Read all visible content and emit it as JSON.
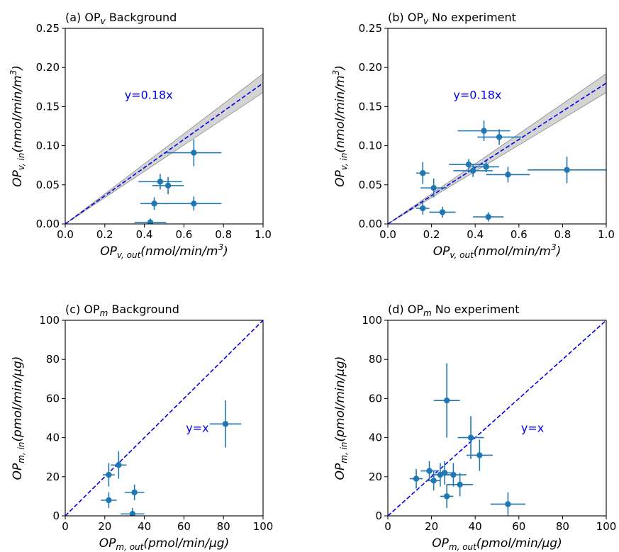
{
  "chart_data": [
    {
      "type": "scatter",
      "title_pre": "(a) OP",
      "title_sub": "v",
      "title_post": " Background",
      "xlabel_main": "OP",
      "xlabel_sub": "v, out",
      "xlabel_units": "(nmol/min/m",
      "xlabel_sup": "3",
      "xlabel_close": ")",
      "ylabel_main": "OP",
      "ylabel_sub": "v, in",
      "ylabel_units": "(nmol/min/m",
      "ylabel_sup": "3",
      "ylabel_close": ")",
      "xlim": [
        0,
        1.0
      ],
      "ylim": [
        0,
        0.25
      ],
      "xticks": [
        "0.0",
        "0.2",
        "0.4",
        "0.6",
        "0.8",
        "1.0"
      ],
      "yticks": [
        "0.00",
        "0.05",
        "0.10",
        "0.15",
        "0.20",
        "0.25"
      ],
      "xtick_values": [
        0,
        0.2,
        0.4,
        0.6,
        0.8,
        1.0
      ],
      "ytick_values": [
        0,
        0.05,
        0.1,
        0.15,
        0.2,
        0.25
      ],
      "points": [
        {
          "x": 0.65,
          "y": 0.091,
          "xerr": 0.14,
          "yerr": 0.017
        },
        {
          "x": 0.48,
          "y": 0.054,
          "xerr": 0.11,
          "yerr": 0.01
        },
        {
          "x": 0.52,
          "y": 0.049,
          "xerr": 0.08,
          "yerr": 0.011
        },
        {
          "x": 0.45,
          "y": 0.026,
          "xerr": 0.07,
          "yerr": 0.008
        },
        {
          "x": 0.65,
          "y": 0.026,
          "xerr": 0.14,
          "yerr": 0.009
        },
        {
          "x": 0.43,
          "y": 0.002,
          "xerr": 0.08,
          "yerr": 0.005
        }
      ],
      "fit_line": {
        "slope": 0.18,
        "band": 0.012,
        "label": "y=0.18x"
      },
      "annotation_pos": {
        "x": 0.3,
        "y": 0.16
      }
    },
    {
      "type": "scatter",
      "title_pre": "(b) OP",
      "title_sub": "v",
      "title_post": " No experiment",
      "xlabel_main": "OP",
      "xlabel_sub": "v, out",
      "xlabel_units": "(nmol/min/m",
      "xlabel_sup": "3",
      "xlabel_close": ")",
      "ylabel_main": "OP",
      "ylabel_sub": "v, in",
      "ylabel_units": "(nmol/min/m",
      "ylabel_sup": "3",
      "ylabel_close": ")",
      "xlim": [
        0,
        1.0
      ],
      "ylim": [
        0,
        0.25
      ],
      "xticks": [
        "0.0",
        "0.2",
        "0.4",
        "0.6",
        "0.8",
        "1.0"
      ],
      "yticks": [
        "0.00",
        "0.05",
        "0.10",
        "0.15",
        "0.20",
        "0.25"
      ],
      "xtick_values": [
        0,
        0.2,
        0.4,
        0.6,
        0.8,
        1.0
      ],
      "ytick_values": [
        0,
        0.05,
        0.1,
        0.15,
        0.2,
        0.25
      ],
      "points": [
        {
          "x": 0.44,
          "y": 0.119,
          "xerr": 0.12,
          "yerr": 0.013
        },
        {
          "x": 0.51,
          "y": 0.111,
          "xerr": 0.1,
          "yerr": 0.01
        },
        {
          "x": 0.37,
          "y": 0.076,
          "xerr": 0.09,
          "yerr": 0.007
        },
        {
          "x": 0.45,
          "y": 0.073,
          "xerr": 0.06,
          "yerr": 0.007
        },
        {
          "x": 0.39,
          "y": 0.068,
          "xerr": 0.09,
          "yerr": 0.008
        },
        {
          "x": 0.16,
          "y": 0.065,
          "xerr": 0.03,
          "yerr": 0.014
        },
        {
          "x": 0.55,
          "y": 0.063,
          "xerr": 0.1,
          "yerr": 0.01
        },
        {
          "x": 0.82,
          "y": 0.069,
          "xerr": 0.18,
          "yerr": 0.017
        },
        {
          "x": 0.21,
          "y": 0.046,
          "xerr": 0.06,
          "yerr": 0.012
        },
        {
          "x": 0.16,
          "y": 0.02,
          "xerr": 0.03,
          "yerr": 0.008
        },
        {
          "x": 0.25,
          "y": 0.015,
          "xerr": 0.06,
          "yerr": 0.007
        },
        {
          "x": 0.46,
          "y": 0.009,
          "xerr": 0.07,
          "yerr": 0.006
        }
      ],
      "fit_line": {
        "slope": 0.18,
        "band": 0.012,
        "label": "y=0.18x"
      },
      "annotation_pos": {
        "x": 0.3,
        "y": 0.16
      }
    },
    {
      "type": "scatter",
      "title_pre": "(c) OP",
      "title_sub": "m",
      "title_post": " Background",
      "xlabel_main": "OP",
      "xlabel_sub": "m, out",
      "xlabel_units": "(pmol/min/μg)",
      "xlabel_sup": "",
      "xlabel_close": "",
      "ylabel_main": "OP",
      "ylabel_sub": "m, in",
      "ylabel_units": "(pmol/min/μg)",
      "ylabel_sup": "",
      "ylabel_close": "",
      "xlim": [
        0,
        100
      ],
      "ylim": [
        0,
        100
      ],
      "xticks": [
        "0",
        "20",
        "40",
        "60",
        "80",
        "100"
      ],
      "yticks": [
        "0",
        "20",
        "40",
        "60",
        "80",
        "100"
      ],
      "xtick_values": [
        0,
        20,
        40,
        60,
        80,
        100
      ],
      "ytick_values": [
        0,
        20,
        40,
        60,
        80,
        100
      ],
      "points": [
        {
          "x": 81,
          "y": 47,
          "xerr": 8,
          "yerr": 12
        },
        {
          "x": 27,
          "y": 26,
          "xerr": 4,
          "yerr": 7
        },
        {
          "x": 22,
          "y": 21,
          "xerr": 3,
          "yerr": 6
        },
        {
          "x": 22,
          "y": 8,
          "xerr": 4,
          "yerr": 4
        },
        {
          "x": 35,
          "y": 12,
          "xerr": 5,
          "yerr": 4
        },
        {
          "x": 34,
          "y": 1,
          "xerr": 6,
          "yerr": 3
        }
      ],
      "fit_line": {
        "slope": 1,
        "band": 0,
        "label": "y=x"
      },
      "annotation_pos": {
        "x": 61,
        "y": 43
      }
    },
    {
      "type": "scatter",
      "title_pre": "(d) OP",
      "title_sub": "m",
      "title_post": " No experiment",
      "xlabel_main": "OP",
      "xlabel_sub": "m, out",
      "xlabel_units": "(pmol/min/μg)",
      "xlabel_sup": "",
      "xlabel_close": "",
      "ylabel_main": "OP",
      "ylabel_sub": "m, in",
      "ylabel_units": "(pmol/min/μg)",
      "ylabel_sup": "",
      "ylabel_close": "",
      "xlim": [
        0,
        100
      ],
      "ylim": [
        0,
        100
      ],
      "xticks": [
        "0",
        "20",
        "40",
        "60",
        "80",
        "100"
      ],
      "yticks": [
        "0",
        "20",
        "40",
        "60",
        "80",
        "100"
      ],
      "xtick_values": [
        0,
        20,
        40,
        60,
        80,
        100
      ],
      "ytick_values": [
        0,
        20,
        40,
        60,
        80,
        100
      ],
      "points": [
        {
          "x": 27,
          "y": 59,
          "xerr": 6,
          "yerr": 19
        },
        {
          "x": 38,
          "y": 40,
          "xerr": 6,
          "yerr": 11
        },
        {
          "x": 42,
          "y": 31,
          "xerr": 6,
          "yerr": 8
        },
        {
          "x": 13,
          "y": 19,
          "xerr": 3,
          "yerr": 5
        },
        {
          "x": 19,
          "y": 23,
          "xerr": 4,
          "yerr": 5
        },
        {
          "x": 21,
          "y": 18,
          "xerr": 3,
          "yerr": 5
        },
        {
          "x": 24,
          "y": 21,
          "xerr": 4,
          "yerr": 6
        },
        {
          "x": 26,
          "y": 22,
          "xerr": 3,
          "yerr": 6
        },
        {
          "x": 30,
          "y": 21,
          "xerr": 6,
          "yerr": 6
        },
        {
          "x": 33,
          "y": 16,
          "xerr": 6,
          "yerr": 6
        },
        {
          "x": 27,
          "y": 10,
          "xerr": 3,
          "yerr": 6
        },
        {
          "x": 55,
          "y": 6,
          "xerr": 8,
          "yerr": 6
        }
      ],
      "fit_line": {
        "slope": 1,
        "band": 0,
        "label": "y=x"
      },
      "annotation_pos": {
        "x": 61,
        "y": 43
      }
    }
  ],
  "colors": {
    "marker": "#1f77b4",
    "fit_line": "#0000ee",
    "band": "#b0b0b0"
  }
}
